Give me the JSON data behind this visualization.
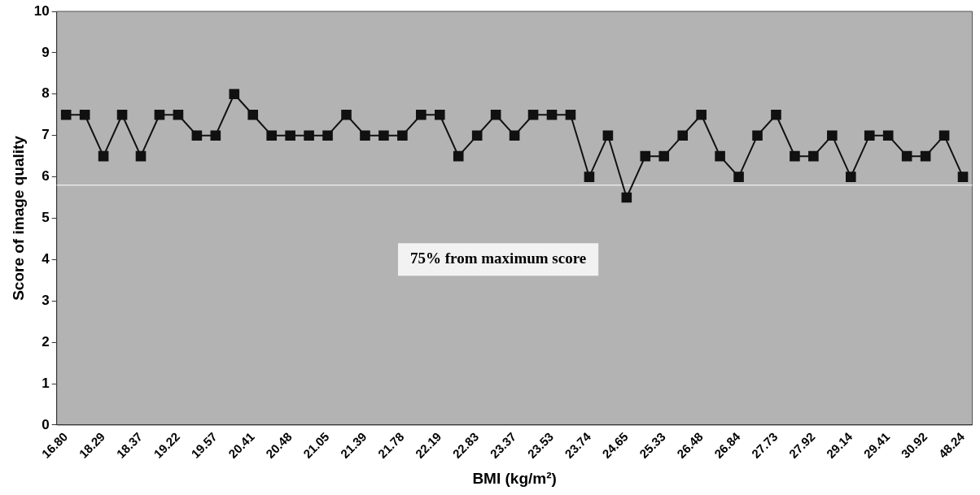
{
  "chart_data": {
    "type": "line",
    "xlabel": "BMI (kg/m²)",
    "ylabel": "Score of image quality",
    "categories": [
      "16.80",
      null,
      "18.29",
      null,
      "18.37",
      null,
      "19.22",
      null,
      "19.57",
      null,
      "20.41",
      null,
      "20.48",
      null,
      "21.05",
      null,
      "21.39",
      null,
      "21.78",
      null,
      "22.19",
      null,
      "22.83",
      null,
      "23.37",
      null,
      "23.53",
      null,
      "23.74",
      null,
      "24.65",
      null,
      "25.33",
      null,
      "26.48",
      null,
      "26.84",
      null,
      "27.73",
      null,
      "27.92",
      null,
      "29.14",
      null,
      "29.41",
      null,
      "30.92",
      null,
      "48.24"
    ],
    "series": [
      {
        "color": "#111111",
        "values": [
          7.5,
          7.5,
          6.5,
          7.5,
          6.5,
          7.5,
          7.5,
          7,
          7,
          8,
          7.5,
          7,
          7,
          7,
          7,
          7.5,
          7,
          7,
          7,
          7.5,
          7.5,
          6.5,
          7,
          7.5,
          7,
          7.5,
          7.5,
          7.5,
          6,
          7,
          5.5,
          6.5,
          6.5,
          7,
          7.5,
          6.5,
          6,
          7,
          7.5,
          6.5,
          6.5,
          7,
          6,
          7,
          7,
          6.5,
          6.5,
          7,
          6
        ]
      }
    ],
    "ylim": [
      0,
      10
    ],
    "yticks": [
      0,
      1,
      2,
      3,
      4,
      5,
      6,
      7,
      8,
      9,
      10
    ],
    "ref_lines": [
      {
        "axis": "y",
        "value": 5.8,
        "color": "#e8e8e8"
      }
    ],
    "annotations": [
      "75% from maximum score"
    ],
    "grid": false,
    "legend": false,
    "marker": "square",
    "line_style": "solid"
  }
}
